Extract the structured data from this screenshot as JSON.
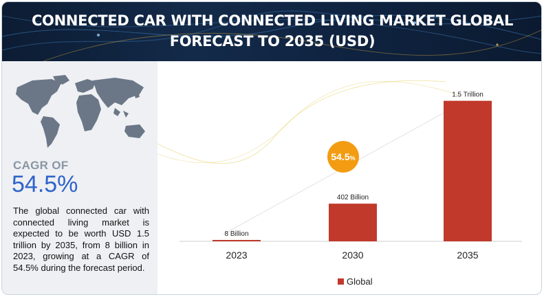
{
  "header": {
    "title_line1": "CONNECTED CAR WITH CONNECTED LIVING MARKET GLOBAL",
    "title_line2": "FORECAST TO 2035 (USD)"
  },
  "sidebar": {
    "cagr_label": "CAGR OF",
    "cagr_value": "54.5%",
    "description": "The global connected car with connected living market is expected to be worth USD 1.5 trillion by 2035, from 8 billion in 2023, growing at a CAGR of 54.5% during the forecast period."
  },
  "colors": {
    "bar": "#c0392b",
    "badge": "#f39c12",
    "header_bg": "#0f2340",
    "cagr_blue": "#2f63c9"
  },
  "chart_data": {
    "type": "bar",
    "categories": [
      "2023",
      "2030",
      "2035"
    ],
    "values": [
      0.008,
      0.402,
      1.5
    ],
    "unit": "USD Trillion",
    "data_labels": [
      "8 Billion",
      "402 Billion",
      "1.5 Trillion"
    ],
    "series": [
      {
        "name": "Global",
        "values": [
          0.008,
          0.402,
          1.5
        ]
      }
    ],
    "legend": "bottom-center",
    "badge": {
      "text": "54.5",
      "suffix": "%"
    },
    "ylim": [
      0,
      1.6
    ],
    "grid": false
  }
}
